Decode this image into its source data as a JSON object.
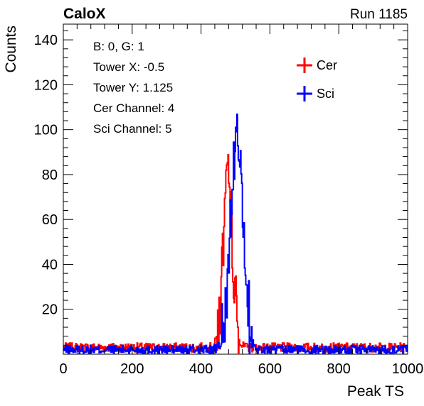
{
  "header": {
    "left_title": "CaloX",
    "right_title": "Run 1185"
  },
  "info_lines": [
    "B: 0, G: 1",
    "Tower X: -0.5",
    "Tower Y: 1.125",
    "Cer Channel: 4",
    "Sci Channel: 5"
  ],
  "chart_data": {
    "type": "line",
    "xlabel": "Peak TS",
    "ylabel": "Counts",
    "xlim": [
      0,
      1000
    ],
    "ylim": [
      0,
      147
    ],
    "xticks": [
      0,
      200,
      400,
      600,
      800,
      1000
    ],
    "yticks": [
      20,
      40,
      60,
      80,
      100,
      120,
      140
    ],
    "legend": {
      "placement": "top-right"
    },
    "series": [
      {
        "name": "Cer",
        "color": "#ff0000",
        "baseline": 3,
        "peak": {
          "center": 478,
          "width": 14,
          "height": 72
        },
        "note": "histogram of peak time slice, noisy baseline ~2-5 counts, peak ~60-88 around TS 460-500"
      },
      {
        "name": "Sci",
        "color": "#0000ff",
        "baseline": 2,
        "peak": {
          "center": 505,
          "width": 18,
          "height": 100
        },
        "note": "histogram of peak time slice, peak ~90-117 around TS 480-530"
      }
    ]
  }
}
